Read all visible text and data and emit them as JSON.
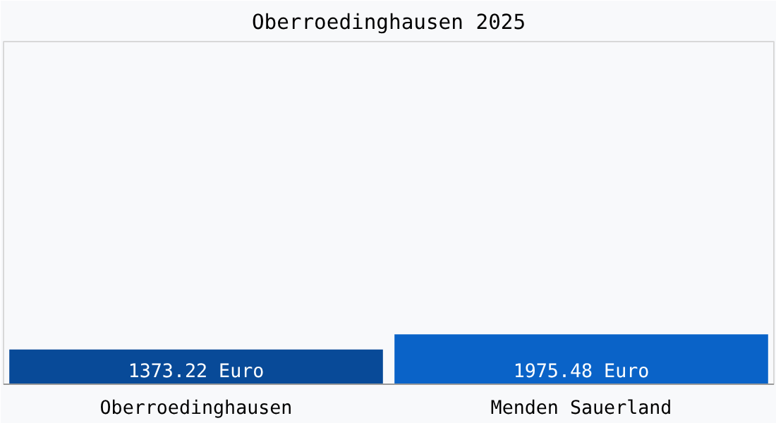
{
  "chart_data": {
    "type": "bar",
    "title": "Oberroedinghausen 2025",
    "categories": [
      "Oberroedinghausen",
      "Menden Sauerland"
    ],
    "values": [
      1373.22,
      1975.48
    ],
    "colors": [
      "#084a98",
      "#0a63c8"
    ],
    "data_labels": true,
    "value_labels": [
      "1373.22 Euro",
      "1975.48 Euro"
    ]
  }
}
